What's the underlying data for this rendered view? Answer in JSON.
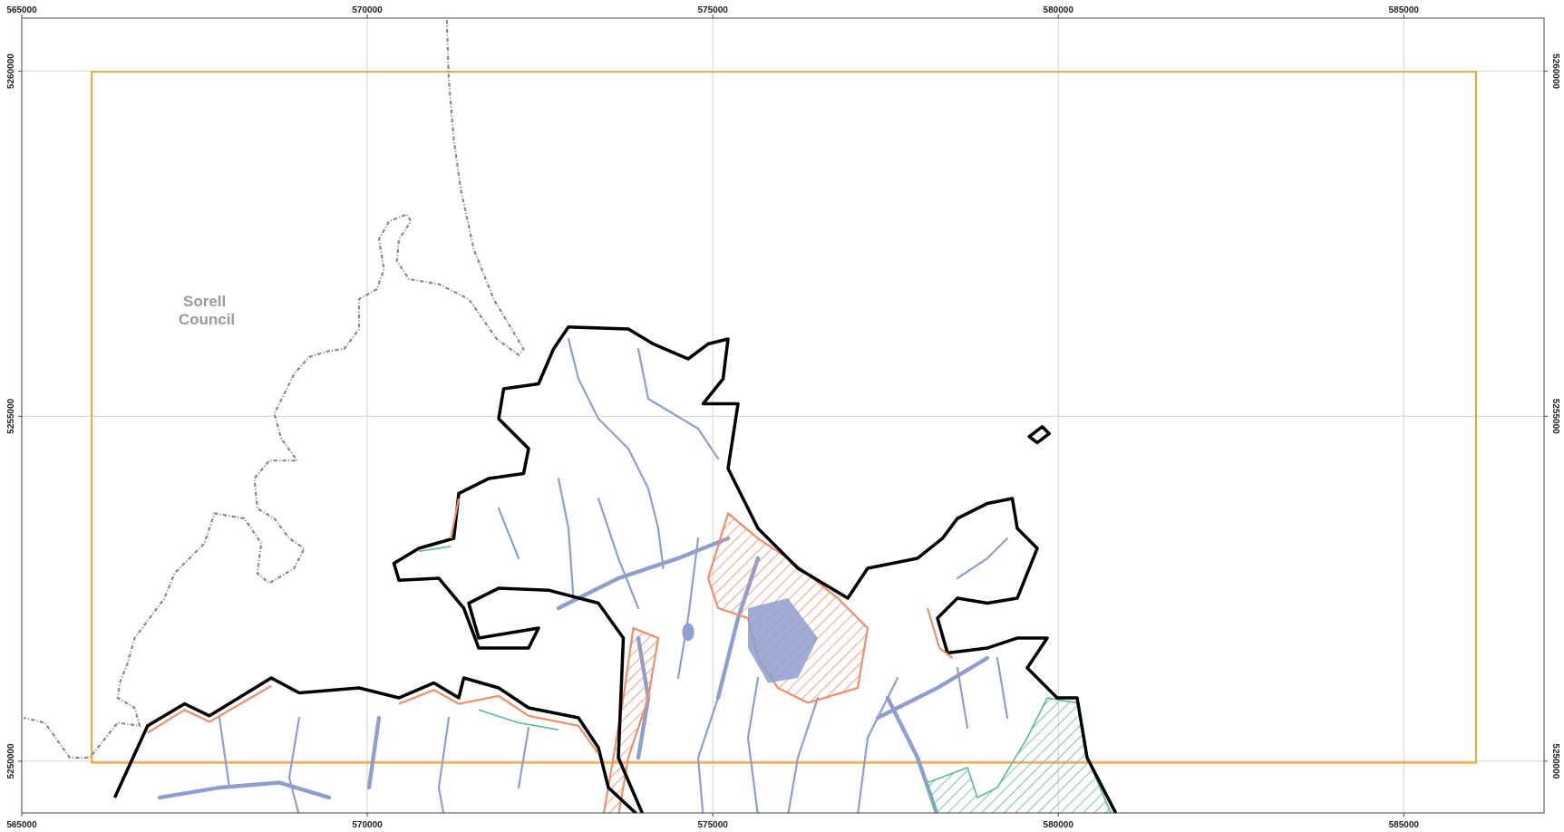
{
  "map": {
    "label": "Sorell Council",
    "xticks": [
      565000,
      570000,
      575000,
      580000,
      585000
    ],
    "yticks": [
      5260000,
      5255000,
      5250000
    ],
    "xlim": [
      565000,
      587030
    ],
    "ylim": [
      5249250,
      5260770
    ],
    "grid": true
  }
}
